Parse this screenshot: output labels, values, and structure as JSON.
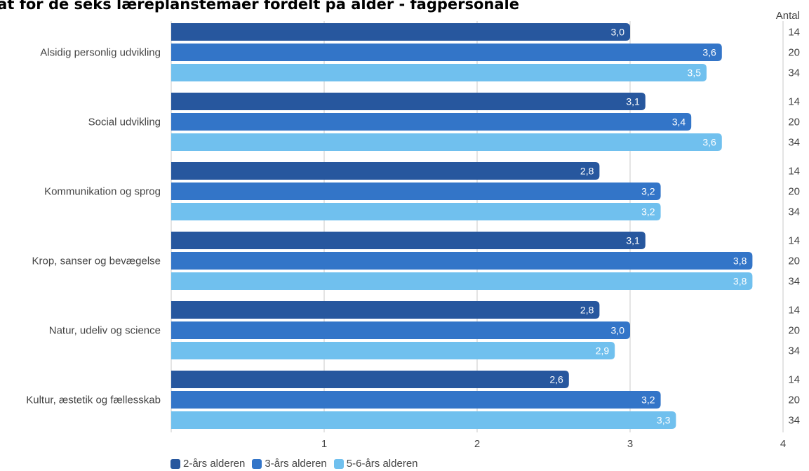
{
  "chart_data": {
    "type": "bar",
    "orientation": "horizontal",
    "title": "ultat for de seks læreplanstemaer fordelt på alder - fagpersonale",
    "categories": [
      "Alsidig personlig udvikling",
      "Social udvikling",
      "Kommunikation og sprog",
      "Krop, sanser og bevægelse",
      "Natur, udeliv og science",
      "Kultur, æstetik og fællesskab"
    ],
    "series": [
      {
        "name": "2-års alderen",
        "color": "#27579e",
        "values": [
          3.0,
          3.1,
          2.8,
          3.1,
          2.8,
          2.6
        ],
        "labels": [
          "3,0",
          "3,1",
          "2,8",
          "3,1",
          "2,8",
          "2,6"
        ],
        "counts": [
          "14",
          "14",
          "14",
          "14",
          "14",
          "14"
        ]
      },
      {
        "name": "3-års alderen",
        "color": "#3375c8",
        "values": [
          3.6,
          3.4,
          3.2,
          3.8,
          3.0,
          3.2
        ],
        "labels": [
          "3,6",
          "3,4",
          "3,2",
          "3,8",
          "3,0",
          "3,2"
        ],
        "counts": [
          "20",
          "20",
          "20",
          "20",
          "20",
          "20"
        ]
      },
      {
        "name": "5-6-års alderen",
        "color": "#70c0ee",
        "values": [
          3.5,
          3.6,
          3.2,
          3.8,
          2.9,
          3.3
        ],
        "labels": [
          "3,5",
          "3,6",
          "3,2",
          "3,8",
          "2,9",
          "3,3"
        ],
        "counts": [
          "34",
          "34",
          "34",
          "34",
          "34",
          "34"
        ]
      }
    ],
    "xlim": [
      0,
      4
    ],
    "xticks": [
      1,
      2,
      3,
      4
    ],
    "count_header": "Antal",
    "grid": true,
    "legend_position": "bottom-left"
  }
}
